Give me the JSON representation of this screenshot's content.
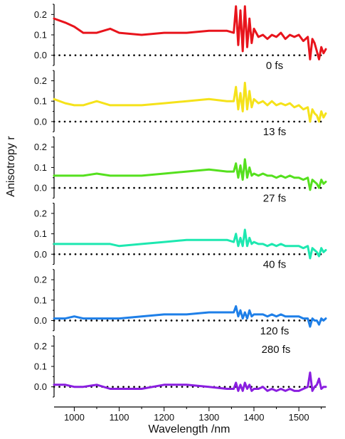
{
  "chart_data": {
    "type": "line",
    "xlabel": "Wavelength /nm",
    "ylabel": "Anisotropy r",
    "xlim": [
      955,
      1560
    ],
    "ylim": [
      -0.05,
      0.25
    ],
    "x_ticks": [
      1000,
      1100,
      1200,
      1300,
      1400,
      1500
    ],
    "x_tick_labels": [
      "1000",
      "1100",
      "1200",
      "1300",
      "1400",
      "1500"
    ],
    "y_ticks": [
      0.0,
      0.1,
      0.2
    ],
    "y_tick_labels": [
      "0.0",
      "0.1",
      "0.2"
    ],
    "reference_line": {
      "y": 0.0,
      "style": "dotted",
      "color": "#000000"
    },
    "grid": false,
    "panels": [
      {
        "label": "0 fs",
        "color": "#e8141c",
        "x": [
          955,
          980,
          1000,
          1020,
          1050,
          1080,
          1100,
          1150,
          1200,
          1250,
          1300,
          1340,
          1355,
          1360,
          1365,
          1370,
          1375,
          1380,
          1385,
          1390,
          1395,
          1400,
          1410,
          1420,
          1430,
          1440,
          1450,
          1460,
          1470,
          1480,
          1490,
          1500,
          1510,
          1520,
          1525,
          1530,
          1535,
          1540,
          1545,
          1550,
          1555,
          1560
        ],
        "y": [
          0.18,
          0.16,
          0.14,
          0.11,
          0.11,
          0.13,
          0.11,
          0.1,
          0.11,
          0.11,
          0.12,
          0.12,
          0.11,
          0.24,
          0.05,
          0.22,
          0.02,
          0.24,
          0.04,
          0.18,
          0.06,
          0.13,
          0.09,
          0.1,
          0.08,
          0.1,
          0.09,
          0.11,
          0.08,
          0.1,
          0.09,
          0.1,
          0.07,
          0.09,
          -0.02,
          0.08,
          0.06,
          0.02,
          -0.02,
          0.04,
          0.01,
          0.03
        ]
      },
      {
        "label": "13 fs",
        "color": "#f5e21a",
        "x": [
          955,
          980,
          1000,
          1020,
          1050,
          1080,
          1100,
          1150,
          1200,
          1250,
          1300,
          1340,
          1355,
          1360,
          1365,
          1370,
          1375,
          1380,
          1385,
          1390,
          1395,
          1400,
          1410,
          1420,
          1430,
          1440,
          1450,
          1460,
          1470,
          1480,
          1490,
          1500,
          1510,
          1520,
          1525,
          1530,
          1535,
          1540,
          1545,
          1550,
          1555,
          1560
        ],
        "y": [
          0.11,
          0.09,
          0.08,
          0.08,
          0.1,
          0.08,
          0.08,
          0.08,
          0.09,
          0.1,
          0.11,
          0.1,
          0.1,
          0.17,
          0.06,
          0.14,
          0.05,
          0.19,
          0.06,
          0.15,
          0.07,
          0.11,
          0.09,
          0.1,
          0.08,
          0.1,
          0.08,
          0.09,
          0.08,
          0.09,
          0.07,
          0.08,
          0.06,
          0.07,
          0.0,
          0.06,
          0.04,
          0.03,
          0.0,
          0.05,
          0.02,
          0.04
        ]
      },
      {
        "label": "27 fs",
        "color": "#55e01e",
        "x": [
          955,
          980,
          1000,
          1020,
          1050,
          1080,
          1100,
          1150,
          1200,
          1250,
          1300,
          1340,
          1355,
          1360,
          1365,
          1370,
          1375,
          1380,
          1385,
          1390,
          1395,
          1400,
          1410,
          1420,
          1430,
          1440,
          1450,
          1460,
          1470,
          1480,
          1490,
          1500,
          1510,
          1520,
          1525,
          1530,
          1535,
          1540,
          1545,
          1550,
          1555,
          1560
        ],
        "y": [
          0.06,
          0.06,
          0.06,
          0.06,
          0.07,
          0.06,
          0.06,
          0.06,
          0.07,
          0.08,
          0.09,
          0.08,
          0.08,
          0.12,
          0.05,
          0.11,
          0.04,
          0.14,
          0.05,
          0.1,
          0.06,
          0.07,
          0.06,
          0.07,
          0.06,
          0.06,
          0.05,
          0.06,
          0.05,
          0.06,
          0.05,
          0.05,
          0.04,
          0.05,
          -0.01,
          0.04,
          0.03,
          0.02,
          0.0,
          0.04,
          0.02,
          0.03
        ]
      },
      {
        "label": "40 fs",
        "color": "#1de8b0",
        "x": [
          955,
          980,
          1000,
          1020,
          1050,
          1080,
          1100,
          1150,
          1200,
          1250,
          1300,
          1340,
          1355,
          1360,
          1365,
          1370,
          1375,
          1380,
          1385,
          1390,
          1395,
          1400,
          1410,
          1420,
          1430,
          1440,
          1450,
          1460,
          1470,
          1480,
          1490,
          1500,
          1510,
          1520,
          1525,
          1530,
          1535,
          1540,
          1545,
          1550,
          1555,
          1560
        ],
        "y": [
          0.05,
          0.05,
          0.05,
          0.05,
          0.05,
          0.05,
          0.04,
          0.05,
          0.06,
          0.07,
          0.07,
          0.07,
          0.06,
          0.1,
          0.04,
          0.08,
          0.04,
          0.12,
          0.04,
          0.08,
          0.05,
          0.06,
          0.05,
          0.05,
          0.04,
          0.05,
          0.04,
          0.05,
          0.04,
          0.04,
          0.04,
          0.04,
          0.03,
          0.04,
          -0.02,
          0.03,
          0.02,
          0.01,
          -0.01,
          0.03,
          0.01,
          0.02
        ]
      },
      {
        "label": "120 fs",
        "color": "#1e7fe8",
        "x": [
          955,
          980,
          1000,
          1020,
          1050,
          1080,
          1100,
          1150,
          1200,
          1250,
          1300,
          1340,
          1355,
          1360,
          1365,
          1370,
          1375,
          1380,
          1385,
          1390,
          1395,
          1400,
          1410,
          1420,
          1430,
          1440,
          1450,
          1460,
          1470,
          1480,
          1490,
          1500,
          1510,
          1520,
          1525,
          1530,
          1535,
          1540,
          1545,
          1550,
          1555,
          1560
        ],
        "y": [
          0.01,
          0.01,
          0.02,
          0.01,
          0.01,
          0.01,
          0.01,
          0.02,
          0.03,
          0.03,
          0.04,
          0.04,
          0.04,
          0.07,
          0.02,
          0.05,
          0.01,
          0.04,
          0.01,
          0.05,
          0.02,
          0.03,
          0.03,
          0.03,
          0.02,
          0.03,
          0.02,
          0.03,
          0.02,
          0.02,
          0.02,
          0.02,
          0.01,
          0.01,
          -0.03,
          0.01,
          0.0,
          0.0,
          -0.02,
          0.01,
          0.0,
          0.01
        ]
      },
      {
        "label": "280 fs",
        "color": "#8a1ee0",
        "x": [
          955,
          980,
          1000,
          1020,
          1050,
          1080,
          1100,
          1150,
          1200,
          1250,
          1300,
          1340,
          1355,
          1360,
          1365,
          1370,
          1375,
          1380,
          1385,
          1390,
          1395,
          1400,
          1410,
          1420,
          1430,
          1440,
          1450,
          1460,
          1470,
          1480,
          1490,
          1500,
          1510,
          1520,
          1525,
          1530,
          1535,
          1540,
          1545,
          1550,
          1555,
          1560
        ],
        "y": [
          0.01,
          0.01,
          0.0,
          0.0,
          0.01,
          -0.01,
          -0.01,
          -0.01,
          0.01,
          0.01,
          0.0,
          -0.01,
          -0.01,
          0.02,
          -0.02,
          0.01,
          -0.02,
          0.02,
          -0.01,
          0.01,
          -0.02,
          -0.01,
          -0.01,
          0.0,
          -0.02,
          -0.01,
          -0.02,
          -0.01,
          -0.02,
          -0.01,
          -0.02,
          -0.02,
          -0.01,
          0.0,
          0.07,
          -0.02,
          0.0,
          0.01,
          0.04,
          -0.01,
          0.0,
          0.0
        ]
      }
    ]
  }
}
